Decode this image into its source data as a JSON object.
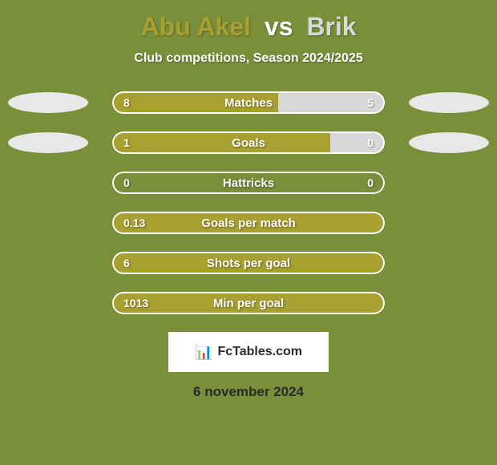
{
  "background_color": "#7a8f3a",
  "title": {
    "player1_name": "Abu Akel",
    "player1_color": "#a8a030",
    "vs_text": "vs",
    "player2_name": "Brik",
    "player2_color": "#d8d8d8"
  },
  "subtitle": "Club competitions, Season 2024/2025",
  "ellipse_colors": {
    "left": "#e8e8e8",
    "right": "#e8e8e8"
  },
  "stats": [
    {
      "label": "Matches",
      "left_value": "8",
      "right_value": "5",
      "left_pct": 61,
      "right_pct": 39,
      "left_color": "#a8a030",
      "right_color": "#d8d8d8",
      "show_ellipses": true,
      "border_color": "#ffffff"
    },
    {
      "label": "Goals",
      "left_value": "1",
      "right_value": "0",
      "left_pct": 80,
      "right_pct": 20,
      "left_color": "#a8a030",
      "right_color": "#d8d8d8",
      "show_ellipses": true,
      "border_color": "#ffffff"
    },
    {
      "label": "Hattricks",
      "left_value": "0",
      "right_value": "0",
      "left_pct": 0,
      "right_pct": 0,
      "left_color": "#a8a030",
      "right_color": "#d8d8d8",
      "show_ellipses": false,
      "border_color": "#ffffff"
    },
    {
      "label": "Goals per match",
      "left_value": "0.13",
      "right_value": "",
      "left_pct": 100,
      "right_pct": 0,
      "left_color": "#a8a030",
      "right_color": "#d8d8d8",
      "show_ellipses": false,
      "border_color": "#ffffff"
    },
    {
      "label": "Shots per goal",
      "left_value": "6",
      "right_value": "",
      "left_pct": 100,
      "right_pct": 0,
      "left_color": "#a8a030",
      "right_color": "#d8d8d8",
      "show_ellipses": false,
      "border_color": "#ffffff"
    },
    {
      "label": "Min per goal",
      "left_value": "1013",
      "right_value": "",
      "left_pct": 100,
      "right_pct": 0,
      "left_color": "#a8a030",
      "right_color": "#d8d8d8",
      "show_ellipses": false,
      "border_color": "#ffffff"
    }
  ],
  "logo": {
    "icon": "📊",
    "text": "FcTables.com"
  },
  "date": "6 november 2024"
}
